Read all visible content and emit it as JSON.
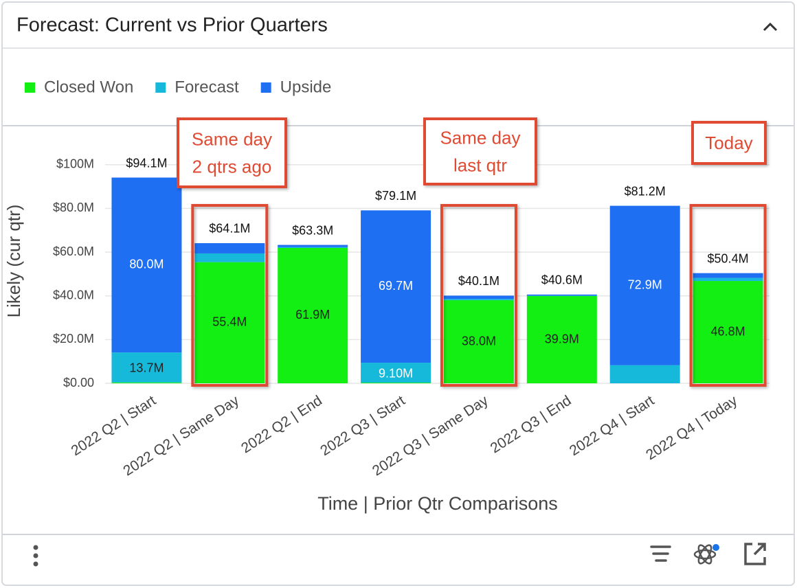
{
  "header": {
    "title": "Forecast: Current vs Prior Quarters"
  },
  "chart_data": {
    "type": "stacked_bar",
    "categories": [
      "2022 Q2 | Start",
      "2022 Q2 | Same Day",
      "2022 Q2 | End",
      "2022 Q3 | Start",
      "2022 Q3 | Same Day",
      "2022 Q3 | End",
      "2022 Q4 | Start",
      "2022 Q4 | Today"
    ],
    "series": [
      {
        "name": "Closed Won",
        "color": "#13ee13",
        "values": [
          0.4,
          55.4,
          61.9,
          0.3,
          38.0,
          39.9,
          0,
          46.8
        ],
        "value_labels": [
          null,
          "55.4M",
          "61.9M",
          null,
          "38.0M",
          "39.9M",
          null,
          "46.8M"
        ]
      },
      {
        "name": "Forecast",
        "color": "#16b9d9",
        "values": [
          13.7,
          4.0,
          0.4,
          9.1,
          0.6,
          0.2,
          8.3,
          1.4
        ],
        "value_labels": [
          "13.7M",
          null,
          null,
          "9.10M",
          null,
          null,
          null,
          null
        ]
      },
      {
        "name": "Upside",
        "color": "#1f6ff2",
        "values": [
          80.0,
          4.7,
          1.0,
          69.7,
          1.5,
          0.5,
          72.9,
          2.2
        ],
        "value_labels": [
          "80.0M",
          null,
          null,
          "69.7M",
          null,
          null,
          "72.9M",
          null
        ]
      }
    ],
    "totals": {
      "values": [
        94.1,
        64.1,
        63.3,
        79.1,
        40.1,
        40.6,
        81.2,
        50.4
      ],
      "value_labels": [
        "$94.1M",
        "$64.1M",
        "$63.3M",
        "$79.1M",
        "$40.1M",
        "$40.6M",
        "$81.2M",
        "$50.4M"
      ]
    },
    "ylim": [
      0,
      115
    ],
    "yticks": [
      {
        "value": 0,
        "label": "$0.00"
      },
      {
        "value": 20,
        "label": "$20.0M"
      },
      {
        "value": 40,
        "label": "$40.0M"
      },
      {
        "value": 60,
        "label": "$60.0M"
      },
      {
        "value": 80,
        "label": "$80.0M"
      },
      {
        "value": 100,
        "label": "$100M"
      }
    ],
    "ylabel": "Likely (cur qtr)",
    "xlabel": "Time | Prior Qtr Comparisons",
    "grid": true,
    "legend": "top-left",
    "annotations": [
      {
        "lines": [
          "Same day",
          "2 qtrs ago"
        ]
      },
      {
        "lines": [
          "Same day",
          "last qtr"
        ]
      },
      {
        "lines": [
          "Today"
        ]
      }
    ]
  }
}
